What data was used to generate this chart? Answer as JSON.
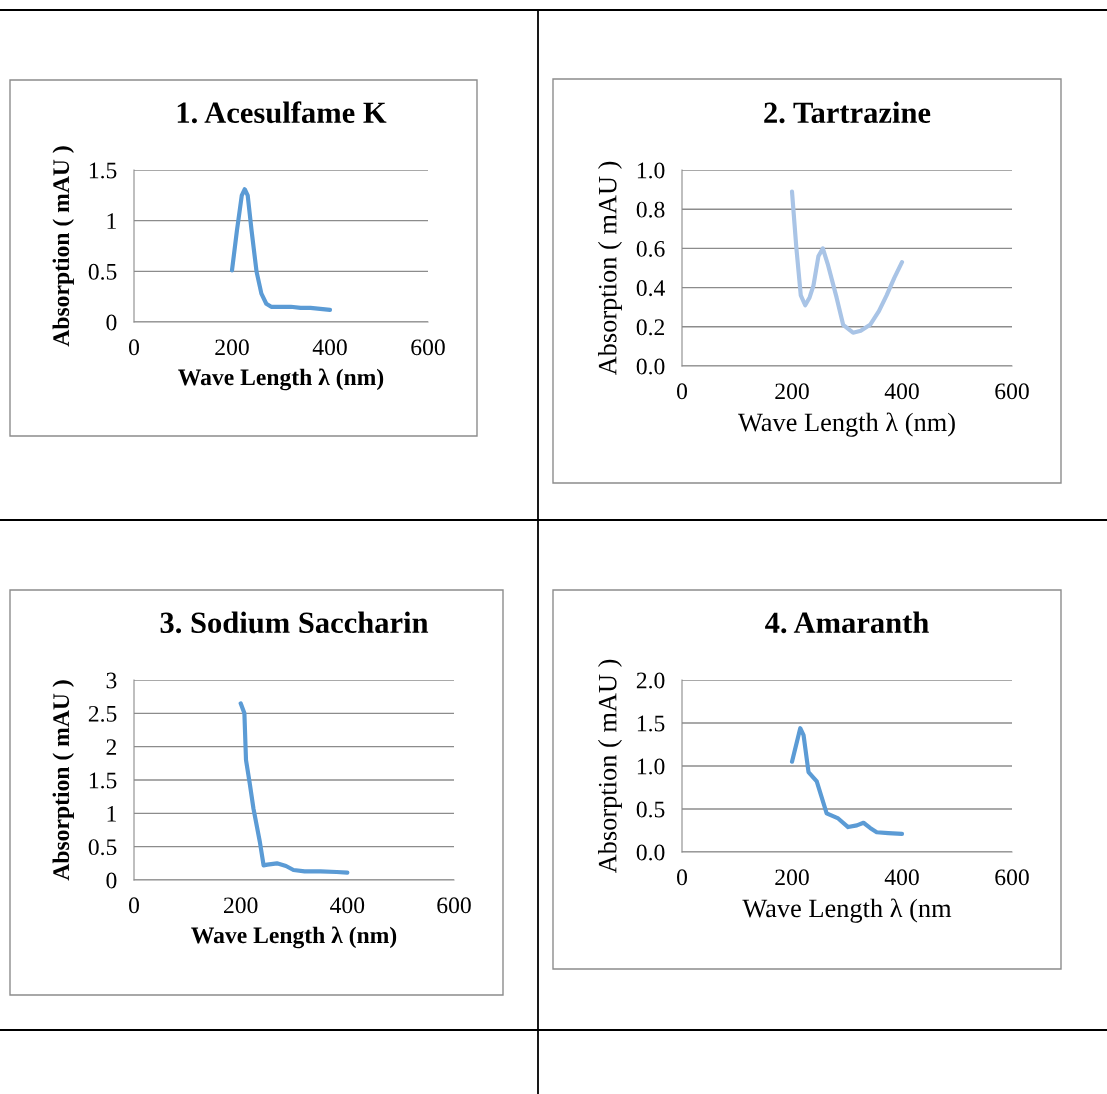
{
  "chart_data": [
    {
      "type": "line",
      "title": "1. Acesulfame K",
      "xlabel": "Wave Length λ (nm)",
      "ylabel": "Absorption ( mAU )",
      "xlim": [
        0,
        600
      ],
      "xticks": [
        0,
        200,
        400,
        600
      ],
      "ylim": [
        0,
        1.5
      ],
      "yticks": [
        0,
        0.5,
        1,
        1.5
      ],
      "grid": "y",
      "marker": "none",
      "line_style": "solid",
      "series": [
        {
          "color": "#5b9bd5",
          "x": [
            200,
            210,
            220,
            226,
            232,
            240,
            250,
            260,
            270,
            280,
            300,
            320,
            340,
            360,
            380,
            400
          ],
          "values": [
            0.51,
            0.9,
            1.25,
            1.31,
            1.25,
            0.9,
            0.5,
            0.28,
            0.18,
            0.15,
            0.15,
            0.15,
            0.14,
            0.14,
            0.13,
            0.12
          ]
        }
      ]
    },
    {
      "type": "line",
      "title": "2. Tartrazine",
      "xlabel": "Wave Length λ (nm)",
      "ylabel": "Absorption ( mAU )",
      "xlim": [
        0,
        600
      ],
      "xticks": [
        0,
        200,
        400,
        600
      ],
      "ylim": [
        0,
        1.0
      ],
      "yticks": [
        {
          "value": 0,
          "label": "0.0"
        },
        {
          "value": 0.2,
          "label": "0.2"
        },
        {
          "value": 0.4,
          "label": "0.4"
        },
        {
          "value": 0.6,
          "label": "0.6"
        },
        {
          "value": 0.8,
          "label": "0.8"
        },
        {
          "value": 1.0,
          "label": "1.0"
        }
      ],
      "grid": "y",
      "marker": "none",
      "line_style": "solid",
      "series": [
        {
          "color": "#a9c4e6",
          "x": [
            200,
            208,
            216,
            224,
            232,
            239,
            248,
            256,
            265,
            281,
            293,
            311,
            325,
            342,
            358,
            372,
            386,
            400
          ],
          "values": [
            0.89,
            0.6,
            0.36,
            0.31,
            0.35,
            0.41,
            0.56,
            0.6,
            0.52,
            0.35,
            0.21,
            0.17,
            0.18,
            0.21,
            0.28,
            0.36,
            0.45,
            0.53
          ]
        }
      ]
    },
    {
      "type": "line",
      "title": "3. Sodium Saccharin",
      "xlabel": "Wave Length λ (nm)",
      "ylabel": "Absorption ( mAU )",
      "xlim": [
        0,
        600
      ],
      "xticks": [
        0,
        200,
        400,
        600
      ],
      "ylim": [
        0,
        3
      ],
      "yticks": [
        0,
        0.5,
        1,
        1.5,
        2,
        2.5,
        3
      ],
      "grid": "y",
      "marker": "none",
      "line_style": "solid",
      "series": [
        {
          "color": "#5b9bd5",
          "x": [
            200,
            207,
            210,
            217,
            224,
            236,
            243,
            250,
            268,
            285,
            299,
            320,
            350,
            380,
            400
          ],
          "values": [
            2.65,
            2.5,
            1.8,
            1.45,
            1.07,
            0.57,
            0.22,
            0.23,
            0.25,
            0.21,
            0.15,
            0.13,
            0.13,
            0.12,
            0.11
          ]
        }
      ]
    },
    {
      "type": "line",
      "title": "4. Amaranth",
      "xlabel": "Wave Length λ (nm",
      "ylabel": "Absorption ( mAU )",
      "xlim": [
        0,
        600
      ],
      "xticks": [
        0,
        200,
        400,
        600
      ],
      "ylim": [
        0,
        2.0
      ],
      "yticks": [
        {
          "value": 0,
          "label": "0.0"
        },
        {
          "value": 0.5,
          "label": "0.5"
        },
        {
          "value": 1.0,
          "label": "1.0"
        },
        {
          "value": 1.5,
          "label": "1.5"
        },
        {
          "value": 2.0,
          "label": "2.0"
        }
      ],
      "grid": "y",
      "marker": "none",
      "line_style": "solid",
      "series": [
        {
          "color": "#5b9bd5",
          "x": [
            200,
            215,
            221,
            230,
            245,
            263,
            284,
            302,
            318,
            330,
            342,
            354,
            375,
            400
          ],
          "values": [
            1.05,
            1.44,
            1.36,
            0.93,
            0.82,
            0.45,
            0.39,
            0.29,
            0.31,
            0.34,
            0.28,
            0.23,
            0.22,
            0.21
          ]
        }
      ]
    }
  ]
}
